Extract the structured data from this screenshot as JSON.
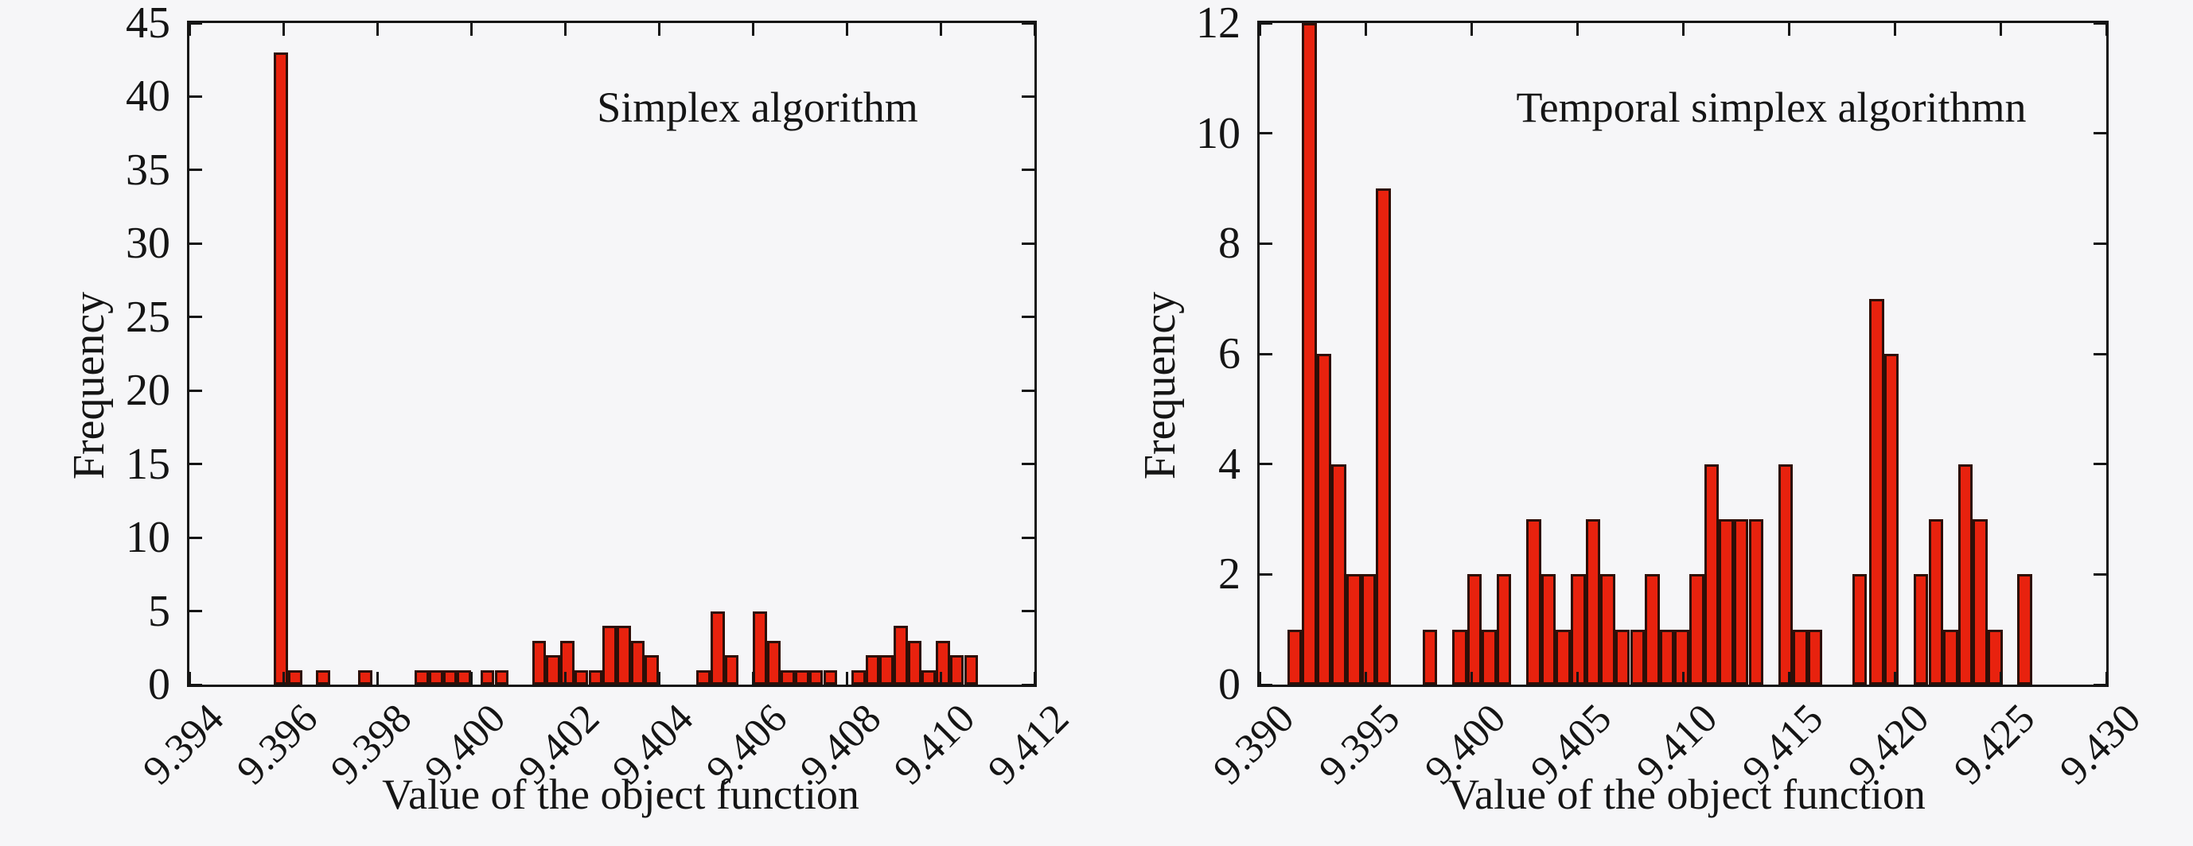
{
  "page": {
    "background": "#f6f6f8"
  },
  "colors": {
    "bar_fill": "#e8220e",
    "bar_edge": "#2d0f08",
    "axis": "#151515",
    "text": "#151515"
  },
  "chart_data": [
    {
      "type": "bar",
      "subtype": "histogram",
      "title": "Simplex algorithm",
      "xlabel": "Value of the object function",
      "ylabel": "Frequency",
      "xlim": [
        9.394,
        9.412
      ],
      "ylim": [
        0,
        45
      ],
      "grid": false,
      "legend": "none",
      "xtick_labels": [
        "9.394",
        "9.396",
        "9.398",
        "9.400",
        "9.402",
        "9.404",
        "9.406",
        "9.408",
        "9.410",
        "9.412"
      ],
      "ytick_labels": [
        "0",
        "5",
        "10",
        "15",
        "20",
        "25",
        "30",
        "35",
        "40",
        "45"
      ],
      "bin_width": 0.0003,
      "bars": [
        {
          "x": 9.3958,
          "h": 43
        },
        {
          "x": 9.3961,
          "h": 1
        },
        {
          "x": 9.3967,
          "h": 1
        },
        {
          "x": 9.3976,
          "h": 1
        },
        {
          "x": 9.3988,
          "h": 1
        },
        {
          "x": 9.3991,
          "h": 1
        },
        {
          "x": 9.3994,
          "h": 1
        },
        {
          "x": 9.3997,
          "h": 1
        },
        {
          "x": 9.4002,
          "h": 1
        },
        {
          "x": 9.4005,
          "h": 1
        },
        {
          "x": 9.4013,
          "h": 3
        },
        {
          "x": 9.4016,
          "h": 2
        },
        {
          "x": 9.4019,
          "h": 3
        },
        {
          "x": 9.4022,
          "h": 1
        },
        {
          "x": 9.4025,
          "h": 1
        },
        {
          "x": 9.4028,
          "h": 4
        },
        {
          "x": 9.4031,
          "h": 4
        },
        {
          "x": 9.4034,
          "h": 3
        },
        {
          "x": 9.4037,
          "h": 2
        },
        {
          "x": 9.4048,
          "h": 1
        },
        {
          "x": 9.4051,
          "h": 5
        },
        {
          "x": 9.4054,
          "h": 2
        },
        {
          "x": 9.406,
          "h": 5
        },
        {
          "x": 9.4063,
          "h": 3
        },
        {
          "x": 9.4066,
          "h": 1
        },
        {
          "x": 9.4069,
          "h": 1
        },
        {
          "x": 9.4072,
          "h": 1
        },
        {
          "x": 9.4075,
          "h": 1
        },
        {
          "x": 9.4081,
          "h": 1
        },
        {
          "x": 9.4084,
          "h": 2
        },
        {
          "x": 9.4087,
          "h": 2
        },
        {
          "x": 9.409,
          "h": 4
        },
        {
          "x": 9.4093,
          "h": 3
        },
        {
          "x": 9.4096,
          "h": 1
        },
        {
          "x": 9.4099,
          "h": 3
        },
        {
          "x": 9.4102,
          "h": 2
        },
        {
          "x": 9.4105,
          "h": 2
        }
      ]
    },
    {
      "type": "bar",
      "subtype": "histogram",
      "title": "Temporal simplex algorithmn",
      "xlabel": "Value of the object function",
      "ylabel": "Frequency",
      "xlim": [
        9.39,
        9.43
      ],
      "ylim": [
        0,
        12
      ],
      "grid": false,
      "legend": "none",
      "xtick_labels": [
        "9.390",
        "9.395",
        "9.400",
        "9.405",
        "9.410",
        "9.415",
        "9.420",
        "9.425",
        "9.430"
      ],
      "ytick_labels": [
        "0",
        "2",
        "4",
        "6",
        "8",
        "10",
        "12"
      ],
      "bin_width": 0.0007,
      "bars": [
        {
          "x": 9.3913,
          "h": 1
        },
        {
          "x": 9.392,
          "h": 12
        },
        {
          "x": 9.3927,
          "h": 6
        },
        {
          "x": 9.3934,
          "h": 4
        },
        {
          "x": 9.3941,
          "h": 2
        },
        {
          "x": 9.3948,
          "h": 2
        },
        {
          "x": 9.3955,
          "h": 9
        },
        {
          "x": 9.3977,
          "h": 1
        },
        {
          "x": 9.3991,
          "h": 1
        },
        {
          "x": 9.3998,
          "h": 2
        },
        {
          "x": 9.4005,
          "h": 1
        },
        {
          "x": 9.4012,
          "h": 2
        },
        {
          "x": 9.4026,
          "h": 3
        },
        {
          "x": 9.4033,
          "h": 2
        },
        {
          "x": 9.404,
          "h": 1
        },
        {
          "x": 9.4047,
          "h": 2
        },
        {
          "x": 9.4054,
          "h": 3
        },
        {
          "x": 9.4061,
          "h": 2
        },
        {
          "x": 9.4068,
          "h": 1
        },
        {
          "x": 9.4075,
          "h": 1
        },
        {
          "x": 9.4082,
          "h": 2
        },
        {
          "x": 9.4089,
          "h": 1
        },
        {
          "x": 9.4096,
          "h": 1
        },
        {
          "x": 9.4103,
          "h": 2
        },
        {
          "x": 9.411,
          "h": 4
        },
        {
          "x": 9.4117,
          "h": 3
        },
        {
          "x": 9.4124,
          "h": 3
        },
        {
          "x": 9.4131,
          "h": 3
        },
        {
          "x": 9.4145,
          "h": 4
        },
        {
          "x": 9.4152,
          "h": 1
        },
        {
          "x": 9.4159,
          "h": 1
        },
        {
          "x": 9.418,
          "h": 2
        },
        {
          "x": 9.4188,
          "h": 7
        },
        {
          "x": 9.4195,
          "h": 6
        },
        {
          "x": 9.4209,
          "h": 2
        },
        {
          "x": 9.4216,
          "h": 3
        },
        {
          "x": 9.4223,
          "h": 1
        },
        {
          "x": 9.423,
          "h": 4
        },
        {
          "x": 9.4237,
          "h": 3
        },
        {
          "x": 9.4244,
          "h": 1
        },
        {
          "x": 9.4258,
          "h": 2
        }
      ]
    }
  ]
}
